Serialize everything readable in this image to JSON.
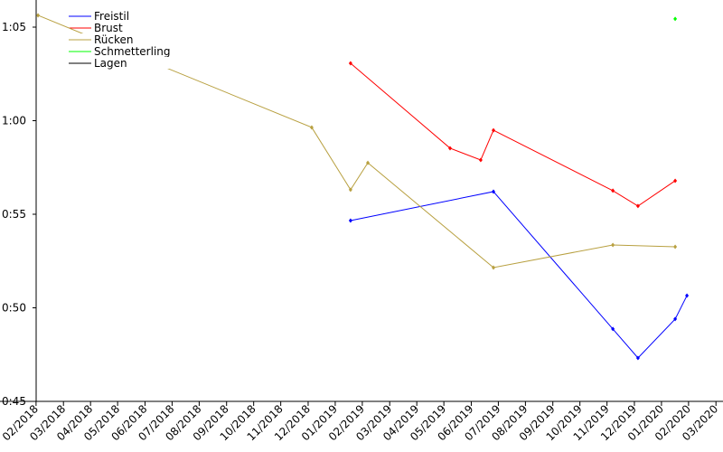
{
  "chart_data": {
    "type": "line",
    "xlim": [
      2017.9725,
      2020.1886
    ],
    "ylim": [
      45,
      66.45
    ],
    "xticks": [
      {
        "value": 2018.083,
        "label": "02/2018"
      },
      {
        "value": 2018.167,
        "label": "03/2018"
      },
      {
        "value": 2018.25,
        "label": "04/2018"
      },
      {
        "value": 2018.333,
        "label": "05/2018"
      },
      {
        "value": 2018.417,
        "label": "06/2018"
      },
      {
        "value": 2018.5,
        "label": "07/2018"
      },
      {
        "value": 2018.583,
        "label": "08/2018"
      },
      {
        "value": 2018.667,
        "label": "09/2018"
      },
      {
        "value": 2018.75,
        "label": "10/2018"
      },
      {
        "value": 2018.833,
        "label": "11/2018"
      },
      {
        "value": 2018.917,
        "label": "12/2018"
      },
      {
        "value": 2019.0,
        "label": "01/2019"
      },
      {
        "value": 2019.083,
        "label": "02/2019"
      },
      {
        "value": 2019.167,
        "label": "03/2019"
      },
      {
        "value": 2019.25,
        "label": "04/2019"
      },
      {
        "value": 2019.333,
        "label": "05/2019"
      },
      {
        "value": 2019.417,
        "label": "06/2019"
      },
      {
        "value": 2019.5,
        "label": "07/2019"
      },
      {
        "value": 2019.583,
        "label": "08/2019"
      },
      {
        "value": 2019.667,
        "label": "09/2019"
      },
      {
        "value": 2019.75,
        "label": "10/2019"
      },
      {
        "value": 2019.833,
        "label": "11/2019"
      },
      {
        "value": 2019.917,
        "label": "12/2019"
      },
      {
        "value": 2020.0,
        "label": "01/2020"
      },
      {
        "value": 2020.083,
        "label": "02/2020"
      },
      {
        "value": 2020.167,
        "label": "03/2020"
      }
    ],
    "yticks": [
      {
        "value": 45,
        "label": "0:45"
      },
      {
        "value": 50,
        "label": "0:50"
      },
      {
        "value": 55,
        "label": "0:55"
      },
      {
        "value": 60,
        "label": "1:00"
      },
      {
        "value": 65,
        "label": "1:05"
      }
    ],
    "legend": "upper left",
    "series": [
      {
        "name": "Freistil",
        "color": "#0000ff",
        "x": [
          2019.047,
          2019.485,
          2019.851,
          2019.928,
          2020.042,
          2020.078
        ],
        "values": [
          54.66,
          56.21,
          48.87,
          47.32,
          49.4,
          50.65
        ]
      },
      {
        "name": "Brust",
        "color": "#ff0000",
        "x": [
          2019.047,
          2019.352,
          2019.446,
          2019.485,
          2019.851,
          2019.928,
          2020.042
        ],
        "values": [
          63.07,
          58.53,
          57.9,
          59.49,
          56.26,
          55.44,
          56.79
        ]
      },
      {
        "name": "Rücken",
        "color": "#b8a040",
        "x": [
          2018.089,
          2018.928,
          2019.047,
          2019.1,
          2019.485,
          2019.851,
          2020.042
        ],
        "values": [
          65.63,
          59.64,
          56.31,
          57.75,
          52.15,
          53.36,
          53.26
        ]
      },
      {
        "name": "Schmetterling",
        "color": "#00ff00",
        "x": [
          2020.042
        ],
        "values": [
          65.44
        ]
      },
      {
        "name": "Lagen",
        "color": "#000000",
        "x": [],
        "values": []
      }
    ]
  }
}
